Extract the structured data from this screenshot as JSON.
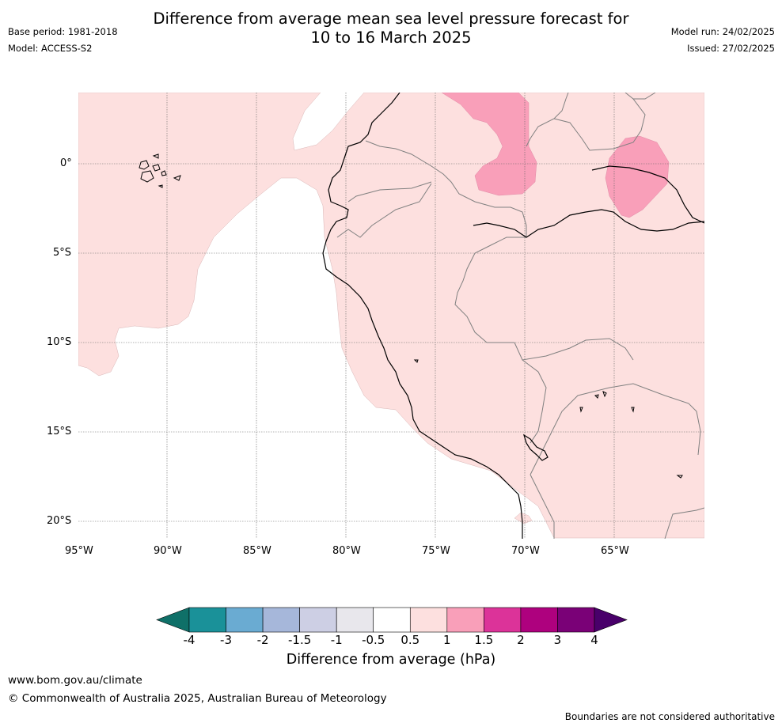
{
  "title_line1": "Difference from average mean sea level pressure forecast for",
  "title_line2": "10 to 16 March 2025",
  "base_period": "Base period: 1981-2018",
  "model": "Model: ACCESS-S2",
  "model_run": "Model run: 24/02/2025",
  "issued": "Issued: 27/02/2025",
  "lat_labels": [
    "0°",
    "5°S",
    "10°S",
    "15°S",
    "20°S"
  ],
  "lon_labels": [
    "95°W",
    "90°W",
    "85°W",
    "80°W",
    "75°W",
    "70°W",
    "65°W"
  ],
  "colorbar": {
    "ticks": [
      "-4",
      "-3",
      "-2",
      "-1.5",
      "-1",
      "-0.5",
      "0.5",
      "1",
      "1.5",
      "2",
      "3",
      "4"
    ],
    "colors": [
      "#0f7068",
      "#1a9199",
      "#6aabd2",
      "#a6b7da",
      "#cdcfe4",
      "#e8e7ec",
      "#ffffff",
      "#fde0df",
      "#f99fb9",
      "#dc3399",
      "#ae017e",
      "#7a0177",
      "#49006a"
    ],
    "label": "Difference from average (hPa)"
  },
  "url": "www.bom.gov.au/climate",
  "copyright": "© Commonwealth of Australia 2025, Australian Bureau of Meteorology",
  "disclaimer": "Boundaries are not considered authoritative"
}
